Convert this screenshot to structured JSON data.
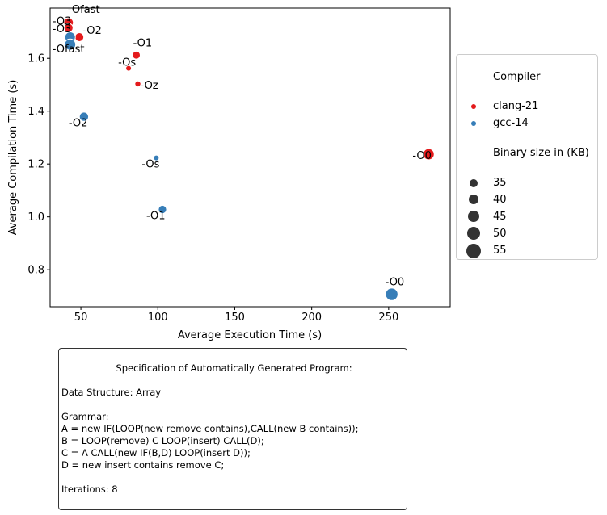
{
  "chart_data": {
    "type": "scatter",
    "title": "",
    "xlabel": "Average Execution Time (s)",
    "ylabel": "Average Compilation Time (s)",
    "xlim": [
      30,
      290
    ],
    "ylim": [
      0.66,
      1.79
    ],
    "xticks": [
      50,
      100,
      150,
      200,
      250
    ],
    "yticks": [
      0.8,
      1.0,
      1.2,
      1.4,
      1.6
    ],
    "xtick_labels": [
      "50",
      "100",
      "150",
      "200",
      "250"
    ],
    "ytick_labels": [
      "0.8",
      "1.0",
      "1.2",
      "1.4",
      "1.6"
    ],
    "hue_title": "Compiler",
    "size_title": "Binary size in (KB)",
    "series": [
      {
        "name": "clang-21",
        "color": "#e41a1c",
        "points": [
          {
            "label": "-Ofast",
            "x": 42,
            "y": 1.735,
            "size": 47
          },
          {
            "label": "-O3",
            "x": 42,
            "y": 1.715,
            "size": 45
          },
          {
            "label": "-O2",
            "x": 49,
            "y": 1.68,
            "size": 45
          },
          {
            "label": "-O1",
            "x": 86,
            "y": 1.612,
            "size": 42
          },
          {
            "label": "-Os",
            "x": 81,
            "y": 1.562,
            "size": 35
          },
          {
            "label": "-Oz",
            "x": 87,
            "y": 1.503,
            "size": 36
          },
          {
            "label": "-O0",
            "x": 276,
            "y": 1.237,
            "size": 52
          }
        ]
      },
      {
        "name": "gcc-14",
        "color": "#377eb8",
        "points": [
          {
            "label": "-O3",
            "x": 43,
            "y": 1.68,
            "size": 50
          },
          {
            "label": "-Ofast",
            "x": 43,
            "y": 1.652,
            "size": 52
          },
          {
            "label": "-O2",
            "x": 52,
            "y": 1.379,
            "size": 46
          },
          {
            "label": "-Os",
            "x": 99,
            "y": 1.223,
            "size": 35
          },
          {
            "label": "-O1",
            "x": 103,
            "y": 1.028,
            "size": 43
          },
          {
            "label": "-O0",
            "x": 252,
            "y": 0.707,
            "size": 56
          }
        ]
      }
    ],
    "size_legend": [
      35,
      40,
      45,
      50,
      55
    ],
    "size_legend_labels": [
      "35",
      "40",
      "45",
      "50",
      "55"
    ],
    "legend_position": "outside right"
  },
  "spec": {
    "title": "Specification of Automatically Generated Program:",
    "data_structure": "Data Structure: Array",
    "grammar_label": "Grammar:",
    "grammar": [
      "A = new IF(LOOP(new remove contains),CALL(new B contains));",
      "B = LOOP(remove) C LOOP(insert) CALL(D);",
      "C = A CALL(new IF(B,D) LOOP(insert D));",
      "D = new insert contains remove C;"
    ],
    "iterations": "Iterations: 8"
  }
}
